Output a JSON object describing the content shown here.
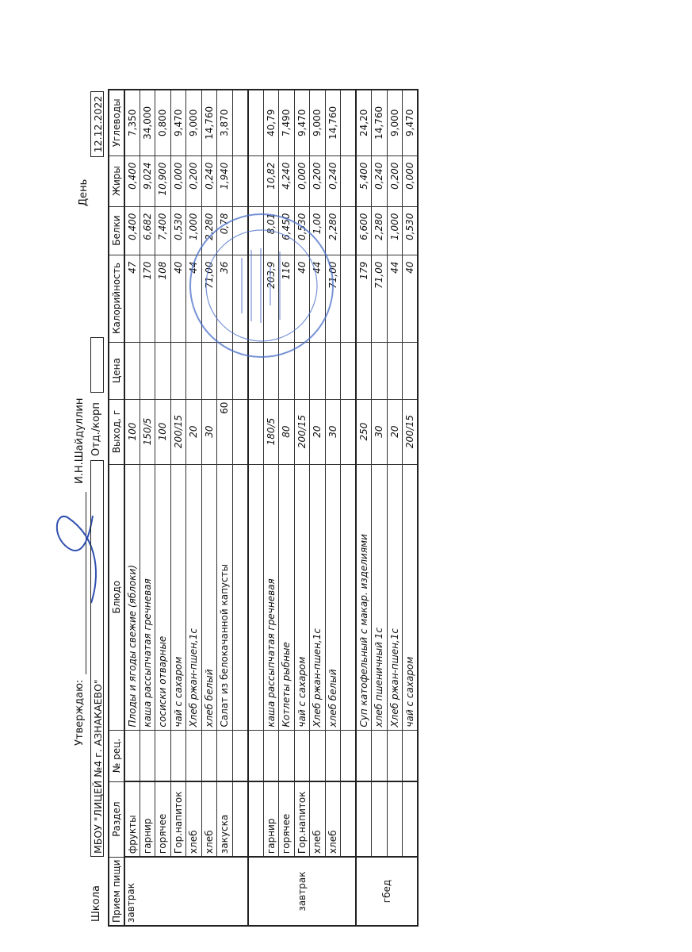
{
  "header": {
    "approve_label": "Утверждаю:",
    "approver_name": "И.Н.Шайдуллин",
    "school_label": "Школа",
    "school_name": "МБОУ \"ЛИЦЕЙ №4 г. АЗНАКАЕВО\"",
    "department_label": "Отд./корп",
    "department_value": "",
    "day_label": "День",
    "date": "12.12.2022"
  },
  "stamp": {
    "text": "«Лицей № 4 города Азнакаево» муниципального района Республики Татарстан",
    "color": "#4a6fc9"
  },
  "table": {
    "columns": [
      "Прием пищи",
      "Раздел",
      "№ рец.",
      "Блюдо",
      "Выход, г",
      "Цена",
      "Калорийность",
      "Белки",
      "Жиры",
      "Углеводы"
    ],
    "groups": [
      {
        "meal": "завтрак",
        "rows": [
          {
            "section": "фрукты",
            "recipe": "",
            "dish": "Плоды и ягоды свежие (яблоки)",
            "yield": "100",
            "price": "",
            "kcal": "47",
            "protein": "0,400",
            "fat": "0,400",
            "carbs": "7,350"
          },
          {
            "section": "гарнир",
            "recipe": "",
            "dish": "каша рассыпчатая гречневая",
            "yield": "150/5",
            "price": "",
            "kcal": "170",
            "protein": "6,682",
            "fat": "9,024",
            "carbs": "34,000"
          },
          {
            "section": "горячее",
            "recipe": "",
            "dish": "сосиски отварные",
            "yield": "100",
            "price": "",
            "kcal": "108",
            "protein": "7,400",
            "fat": "10,900",
            "carbs": "0,800"
          },
          {
            "section": "Гор.напиток",
            "recipe": "",
            "dish": "чай с сахаром",
            "yield": "200/15",
            "price": "",
            "kcal": "40",
            "protein": "0,530",
            "fat": "0,000",
            "carbs": "9,470"
          },
          {
            "section": "хлеб",
            "recipe": "",
            "dish": "Хлеб ржан-пшен,1с",
            "yield": "20",
            "price": "",
            "kcal": "44",
            "protein": "1,000",
            "fat": "0,200",
            "carbs": "9,000"
          },
          {
            "section": "хлеб",
            "recipe": "",
            "dish": "хлеб белый",
            "yield": "30",
            "price": "",
            "kcal": "71,00",
            "protein": "2,280",
            "fat": "0,240",
            "carbs": "14,760"
          },
          {
            "section": "закуска",
            "recipe": "",
            "dish": "Салат из белокачанной капусты",
            "yield": "60",
            "price": "",
            "kcal": "36",
            "protein": "0,78",
            "fat": "1,940",
            "carbs": "3,870"
          },
          {
            "section": "",
            "recipe": "",
            "dish": "",
            "yield": "",
            "price": "",
            "kcal": "",
            "protein": "",
            "fat": "",
            "carbs": ""
          }
        ]
      },
      {
        "meal": "завтрак",
        "rows": [
          {
            "section": "",
            "recipe": "",
            "dish": "",
            "yield": "",
            "price": "",
            "kcal": "",
            "protein": "",
            "fat": "",
            "carbs": ""
          },
          {
            "section": "гарнир",
            "recipe": "",
            "dish": "каша рассыпчатая гречневая",
            "yield": "180/5",
            "price": "",
            "kcal": "203,9",
            "protein": "8,01",
            "fat": "10,82",
            "carbs": "40,79"
          },
          {
            "section": "горячее",
            "recipe": "",
            "dish": "Котлеты рыбные",
            "yield": "80",
            "price": "",
            "kcal": "116",
            "protein": "6,450",
            "fat": "4,240",
            "carbs": "7,490"
          },
          {
            "section": "Гор.напиток",
            "recipe": "",
            "dish": "чай с сахаром",
            "yield": "200/15",
            "price": "",
            "kcal": "40",
            "protein": "0,530",
            "fat": "0,000",
            "carbs": "9,470"
          },
          {
            "section": "хлеб",
            "recipe": "",
            "dish": "Хлеб ржан-пшен,1с",
            "yield": "20",
            "price": "",
            "kcal": "44",
            "protein": "1,00",
            "fat": "0,200",
            "carbs": "9,000"
          },
          {
            "section": "хлеб",
            "recipe": "",
            "dish": "хлеб белый",
            "yield": "30",
            "price": "",
            "kcal": "71,00",
            "protein": "2,280",
            "fat": "0,240",
            "carbs": "14,760"
          },
          {
            "section": "",
            "recipe": "",
            "dish": "",
            "yield": "",
            "price": "",
            "kcal": "",
            "protein": "",
            "fat": "",
            "carbs": ""
          }
        ]
      },
      {
        "meal": "гбед",
        "rows": [
          {
            "section": "",
            "recipe": "",
            "dish": "Суп катофельный с макар. изделиями",
            "yield": "250",
            "price": "",
            "kcal": "179",
            "protein": "6,600",
            "fat": "5,400",
            "carbs": "24,20"
          },
          {
            "section": "",
            "recipe": "",
            "dish": "хлеб пшеничный 1с",
            "yield": "30",
            "price": "",
            "kcal": "71,00",
            "protein": "2,280",
            "fat": "0,240",
            "carbs": "14,760"
          },
          {
            "section": "",
            "recipe": "",
            "dish": "Хлеб ржан-пшен,1с",
            "yield": "20",
            "price": "",
            "kcal": "44",
            "protein": "1,000",
            "fat": "0,200",
            "carbs": "9,000"
          },
          {
            "section": "",
            "recipe": "",
            "dish": "чай с сахаром",
            "yield": "200/15",
            "price": "",
            "kcal": "40",
            "protein": "0,530",
            "fat": "0,000",
            "carbs": "9,470"
          }
        ]
      }
    ]
  }
}
